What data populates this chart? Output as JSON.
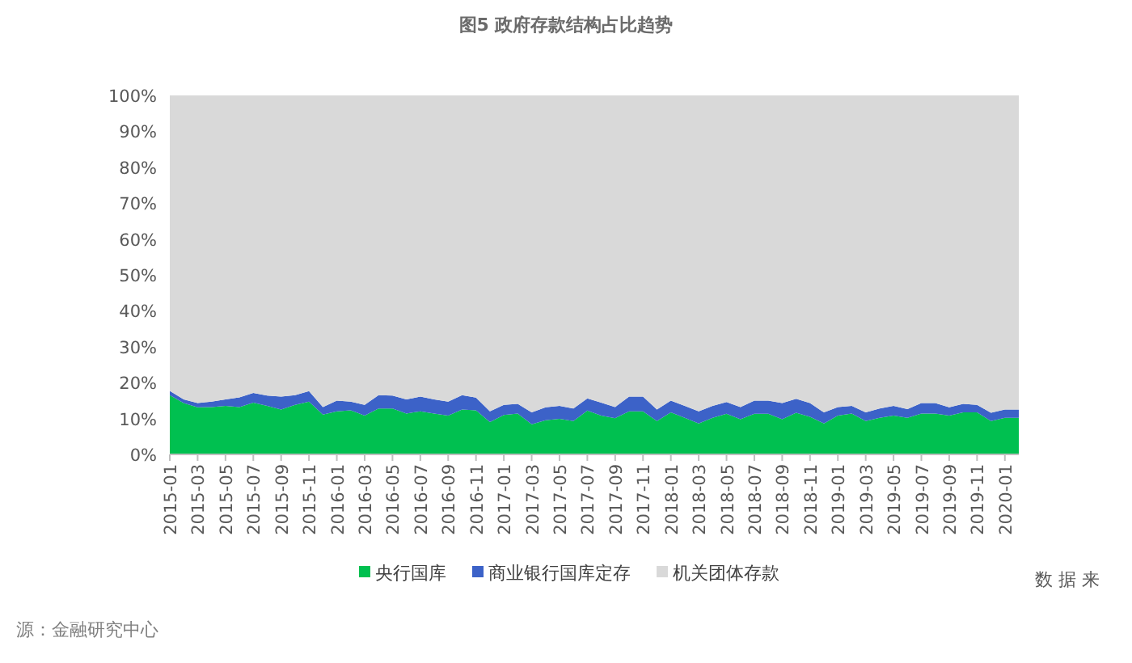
{
  "chart_data": {
    "type": "area",
    "title": "图5 政府存款结构占比趋势",
    "stacked": true,
    "legend": "bottom",
    "categories": [
      "2015-01",
      null,
      "2015-03",
      null,
      "2015-05",
      null,
      "2015-07",
      null,
      "2015-09",
      null,
      "2015-11",
      null,
      "2016-01",
      null,
      "2016-03",
      null,
      "2016-05",
      null,
      "2016-07",
      null,
      "2016-09",
      null,
      "2016-11",
      null,
      "2017-01",
      null,
      "2017-03",
      null,
      "2017-05",
      null,
      "2017-07",
      null,
      "2017-09",
      null,
      "2017-11",
      null,
      "2018-01",
      null,
      "2018-03",
      null,
      "2018-05",
      null,
      "2018-07",
      null,
      "2018-09",
      null,
      "2018-11",
      null,
      "2019-01",
      null,
      "2019-03",
      null,
      "2019-05",
      null,
      "2019-07",
      null,
      "2019-09",
      null,
      "2019-11",
      null,
      "2020-01",
      null
    ],
    "ylim": [
      0,
      100
    ],
    "yticks": [
      {
        "value": 0,
        "label": "0%"
      },
      {
        "value": 10,
        "label": "10%"
      },
      {
        "value": 20,
        "label": "20%"
      },
      {
        "value": 30,
        "label": "30%"
      },
      {
        "value": 40,
        "label": "40%"
      },
      {
        "value": 50,
        "label": "50%"
      },
      {
        "value": 60,
        "label": "60%"
      },
      {
        "value": 70,
        "label": "70%"
      },
      {
        "value": 80,
        "label": "80%"
      },
      {
        "value": 90,
        "label": "90%"
      },
      {
        "value": 100,
        "label": "100%"
      }
    ],
    "series": [
      {
        "name": "央行国库",
        "color": "#00c050",
        "values": [
          16.5,
          14.3,
          13.1,
          13.2,
          13.5,
          13.2,
          14.4,
          13.5,
          12.5,
          13.8,
          14.7,
          11.1,
          12.0,
          12.3,
          10.8,
          12.8,
          12.8,
          11.4,
          12.0,
          11.4,
          10.8,
          12.5,
          12.3,
          9.0,
          11.0,
          11.4,
          8.4,
          9.5,
          9.9,
          9.3,
          12.2,
          10.8,
          10.1,
          12.0,
          12.0,
          9.3,
          11.7,
          10.2,
          8.6,
          10.2,
          11.3,
          9.8,
          11.3,
          11.3,
          9.8,
          11.6,
          10.5,
          8.6,
          10.8,
          11.4,
          9.3,
          10.2,
          10.8,
          10.2,
          11.4,
          11.4,
          10.8,
          11.7,
          11.7,
          9.3,
          10.2,
          10.2
        ]
      },
      {
        "name": "商业银行国库定存",
        "color": "#3c62c8",
        "values": [
          1.2,
          1.0,
          1.2,
          1.5,
          1.8,
          2.7,
          2.7,
          2.9,
          3.6,
          2.7,
          2.9,
          2.1,
          3.0,
          2.4,
          3.0,
          3.7,
          3.6,
          3.9,
          4.1,
          3.9,
          3.9,
          4.0,
          3.5,
          3.0,
          2.8,
          2.7,
          3.3,
          3.6,
          3.6,
          3.5,
          3.4,
          3.6,
          3.1,
          4.1,
          4.1,
          3.2,
          3.3,
          3.3,
          3.4,
          3.3,
          3.3,
          3.4,
          3.7,
          3.7,
          4.5,
          3.9,
          3.8,
          3.1,
          2.4,
          2.1,
          2.4,
          2.6,
          2.7,
          2.4,
          2.9,
          2.9,
          2.3,
          2.4,
          2.1,
          2.3,
          2.3,
          2.3
        ]
      },
      {
        "name": "机关团体存款",
        "color": "#d9d9d9",
        "values": [
          82.3,
          84.7,
          85.7,
          85.3,
          84.7,
          84.1,
          82.9,
          83.6,
          83.9,
          83.5,
          82.4,
          86.8,
          85.0,
          85.3,
          86.2,
          83.5,
          83.6,
          84.7,
          83.9,
          84.7,
          85.3,
          83.5,
          84.2,
          88.0,
          86.2,
          85.9,
          88.3,
          86.9,
          86.5,
          87.2,
          84.4,
          85.6,
          86.8,
          83.9,
          83.9,
          87.5,
          85.0,
          86.5,
          88.0,
          86.5,
          85.4,
          86.8,
          85.0,
          85.0,
          85.7,
          84.5,
          85.7,
          88.3,
          86.8,
          86.5,
          88.3,
          87.2,
          86.5,
          87.4,
          85.7,
          85.7,
          86.9,
          85.9,
          86.2,
          88.4,
          87.5,
          87.5
        ]
      }
    ],
    "annotations": [
      "数 据 来",
      "源：金融研究中心"
    ]
  }
}
